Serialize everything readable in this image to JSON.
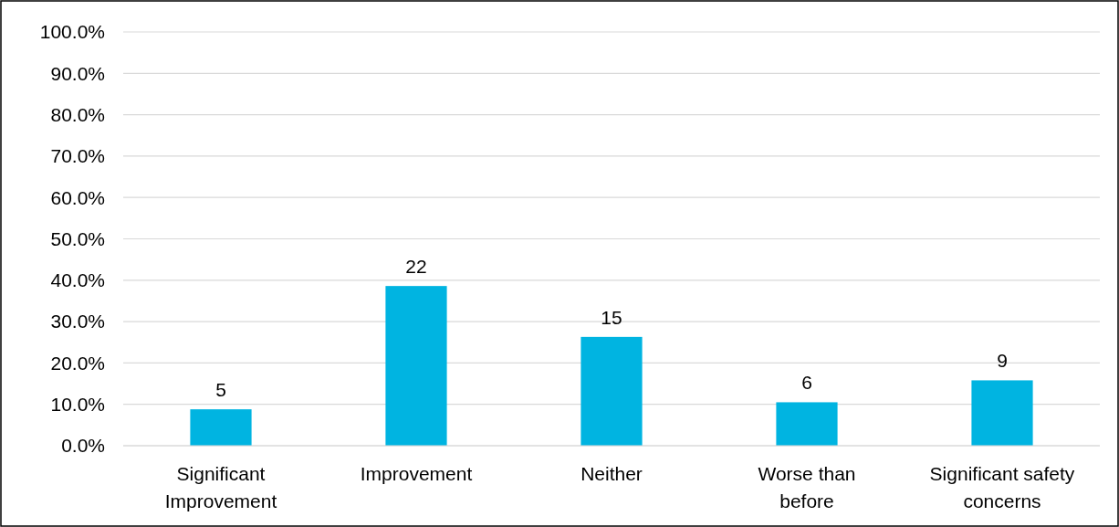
{
  "chart_data": {
    "type": "bar",
    "categories": [
      "Significant Improvement",
      "Improvement",
      "Neither",
      "Worse than before",
      "Significant safety concerns"
    ],
    "values": [
      8.8,
      38.6,
      26.3,
      10.5,
      15.8
    ],
    "annotations": [
      {
        "text": "5",
        "x": "Significant Improvement",
        "y": 8.8
      },
      {
        "text": "22",
        "x": "Improvement",
        "y": 38.6
      },
      {
        "text": "15",
        "x": "Neither",
        "y": 26.3
      },
      {
        "text": "6",
        "x": "Worse than before",
        "y": 10.5
      },
      {
        "text": "9",
        "x": "Significant safety concerns",
        "y": 15.8
      }
    ],
    "color": "#00b4e1",
    "ylim": [
      0,
      100
    ],
    "yticks": [
      {
        "value": 0,
        "label": "0.0%"
      },
      {
        "value": 10,
        "label": "10.0%"
      },
      {
        "value": 20,
        "label": "20.0%"
      },
      {
        "value": 30,
        "label": "30.0%"
      },
      {
        "value": 40,
        "label": "40.0%"
      },
      {
        "value": 50,
        "label": "50.0%"
      },
      {
        "value": 60,
        "label": "60.0%"
      },
      {
        "value": 70,
        "label": "70.0%"
      },
      {
        "value": 80,
        "label": "80.0%"
      },
      {
        "value": 90,
        "label": "90.0%"
      },
      {
        "value": 100,
        "label": "100.0%"
      }
    ],
    "grid": "y"
  }
}
